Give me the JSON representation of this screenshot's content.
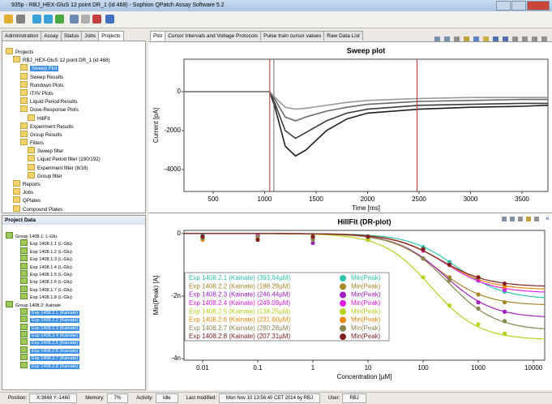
{
  "window": {
    "title": "935p - RBJ_HEX-GluS 12 point DR_1 (id 468) - Sophion QPatch Assay Software 5.2"
  },
  "left_tabs": [
    "Administration",
    "Assay",
    "Status",
    "Jobs",
    "Projects"
  ],
  "left_selected": 4,
  "project_tree": {
    "label": "Projects",
    "children": [
      {
        "label": "RBJ_HEX-GluS 12 point DR_1 (id 468)",
        "children": [
          {
            "label": "Sweep Plot",
            "selected": true
          },
          {
            "label": "Sweep Results"
          },
          {
            "label": "Rundown Plots"
          },
          {
            "label": "IT/IV Plots"
          },
          {
            "label": "Liquid Period Results"
          },
          {
            "label": "Dose-Response Plots",
            "children": [
              {
                "label": "HillFit"
              }
            ]
          },
          {
            "label": "Experiment Results"
          },
          {
            "label": "Group Results"
          },
          {
            "label": "Filters",
            "children": [
              {
                "label": "Sweep filter"
              },
              {
                "label": "Liquid Period filter (190/192)"
              },
              {
                "label": "Experiment filter (8/16)"
              },
              {
                "label": "Group filter"
              }
            ]
          }
        ]
      },
      {
        "label": "Reports"
      },
      {
        "label": "Jobs"
      },
      {
        "label": "QPlates"
      },
      {
        "label": "Compound Plates"
      }
    ]
  },
  "project_data": {
    "title": "Project Data",
    "groups": [
      {
        "label": "Group 1408.1: L-Glu",
        "items": [
          "Exp 1408.1.1 (L-Glu)",
          "Exp 1408.1.2 (L-Glu)",
          "Exp 1408.1.3 (L-Glu)",
          "Exp 1408.1.4 (L-Glu)",
          "Exp 1408.1.5 (L-Glu)",
          "Exp 1408.1.6 (L-Glu)",
          "Exp 1408.1.7 (L-Glu)",
          "Exp 1408.1.8 (L-Glu)"
        ]
      },
      {
        "label": "Group 1408.2: Kainate",
        "selected": true,
        "items": [
          "Exp 1408.2.1 (Kainate)",
          "Exp 1408.2.2 (Kainate)",
          "Exp 1408.2.3 (Kainate)",
          "Exp 1408.2.4 (Kainate)",
          "Exp 1408.2.5 (Kainate)",
          "Exp 1408.2.6 (Kainate)",
          "Exp 1408.2.7 (Kainate)",
          "Exp 1408.2.8 (Kainate)"
        ]
      }
    ]
  },
  "right_tabs": [
    "Plot",
    "Cursor Intervals and Voltage Protocols",
    "Pulse train cursor values",
    "Raw Data List"
  ],
  "right_selected": 0,
  "status_bar": [
    {
      "label": "Position:",
      "value": "X:3848 Y:-1460"
    },
    {
      "label": "Memory:",
      "value": "7%"
    },
    {
      "label": "Activity:",
      "value": "Idle"
    },
    {
      "label": "Last modified:",
      "value": "Mon Nov 10 13:56:40 CET 2014 by RBJ"
    },
    {
      "label": "User:",
      "value": "RBJ"
    }
  ],
  "chart_data": [
    {
      "type": "line",
      "title": "Sweep plot",
      "xlabel": "Time [ms]",
      "ylabel": "Current [pA]",
      "x": [
        217,
        1000,
        1050,
        1100,
        1200,
        1300,
        1400,
        1600,
        1800,
        2000,
        2500,
        3000,
        3500,
        3752
      ],
      "xlim": [
        217,
        3752
      ],
      "ylim": [
        -5125,
        1667
      ],
      "xticks": [
        500,
        1000,
        1500,
        2000,
        2500,
        3000,
        3500
      ],
      "yticks": [
        -4000,
        -2000,
        0
      ],
      "series": [
        {
          "color": "#1e1e1e",
          "values": [
            0,
            0,
            0,
            -800,
            -2800,
            -3300,
            -3000,
            -2000,
            -1400,
            -1100,
            -900,
            -800,
            -750,
            -700
          ]
        },
        {
          "color": "#3c3c3c",
          "values": [
            0,
            0,
            0,
            -600,
            -2000,
            -2400,
            -2100,
            -1500,
            -1100,
            -900,
            -700,
            -650,
            -600,
            -600
          ]
        },
        {
          "color": "#6a6a6a",
          "values": [
            0,
            0,
            0,
            -400,
            -1300,
            -1500,
            -1300,
            -1000,
            -800,
            -650,
            -500,
            -450,
            -400,
            -400
          ]
        },
        {
          "color": "#9a9a9a",
          "values": [
            0,
            0,
            0,
            -300,
            -800,
            -900,
            -850,
            -700,
            -550,
            -450,
            -350,
            -300,
            -300,
            -300
          ]
        }
      ],
      "cursors": [
        {
          "value": 1050,
          "color": "#c03030"
        },
        {
          "value": 1090,
          "color": "#707070"
        },
        {
          "value": 2480,
          "color": "#c03030"
        }
      ]
    },
    {
      "type": "scatter",
      "title": "HillFit (DR-plot)",
      "xlabel": "Concentration [µM]",
      "ylabel": "Min(Peak) [A]",
      "xscale": "log",
      "x": [
        0.01,
        0.1,
        1,
        10,
        100,
        300,
        1000,
        3000
      ],
      "xlim": [
        0.0046,
        16000
      ],
      "ylim": [
        -4.05e-09,
        1e-10
      ],
      "xticks": [
        0.01,
        0.1,
        1,
        10,
        100,
        1000,
        10000
      ],
      "yticks": [
        {
          "value": -4e-09,
          "label": "-4n"
        },
        {
          "value": -2e-09,
          "label": "-2n"
        },
        0
      ],
      "series": [
        {
          "name": "Exp 1408.2.1 (Kainate) (393.64µM)",
          "measure": "Min(Peak)",
          "color": "#2ec4ac",
          "ec50": 393.64,
          "bottom": -2.1e-09,
          "hill": 1,
          "values": [
            -5e-11,
            -1e-10,
            -5e-11,
            -1e-10,
            -4.3e-10,
            -9.1e-10,
            -1.51e-09,
            -1.86e-09
          ]
        },
        {
          "name": "Exp 1408.2.2 (Kainate) (188.29µM)",
          "measure": "Min(Peak)",
          "color": "#a8862a",
          "ec50": 188.29,
          "bottom": -2.3e-09,
          "hill": 1,
          "values": [
            -2e-10,
            -1e-10,
            -1.5e-10,
            -1.5e-10,
            -8e-10,
            -1.4e-09,
            -1.95e-09,
            -2.2e-09
          ]
        },
        {
          "name": "Exp 1408.2.3 (Kainate) (246.44µM)",
          "measure": "Min(Peak)",
          "color": "#a020c0",
          "ec50": 246.44,
          "bottom": -2.7e-09,
          "hill": 1,
          "values": [
            -1e-10,
            -1e-10,
            -3e-10,
            -2e-10,
            -8e-10,
            -1.5e-09,
            -2.2e-09,
            -2.5e-09
          ]
        },
        {
          "name": "Exp 1408.2.4 (Kainate) (249.09µM)",
          "measure": "Min(Peak)",
          "color": "#e020e0",
          "ec50": 249.09,
          "bottom": -1.9e-09,
          "hill": 1,
          "values": [
            -1e-10,
            -5e-11,
            -1e-10,
            -1e-10,
            -5.5e-10,
            -1e-09,
            -1.5e-09,
            -1.8e-09
          ]
        },
        {
          "name": "Exp 1408.2.5 (Kainate) (138.25µM)",
          "measure": "Min(Peak)",
          "color": "#b8d020",
          "ec50": 138.25,
          "bottom": -3.4e-09,
          "hill": 1,
          "values": [
            -1e-10,
            -2e-10,
            -1e-10,
            -2e-10,
            -1.4e-09,
            -2.3e-09,
            -2.9e-09,
            -3.2e-09
          ]
        },
        {
          "name": "Exp 1408.2.6 (Kainate) (231.60µM)",
          "measure": "Min(Peak)",
          "color": "#e88a10",
          "ec50": 231.6,
          "bottom": -1.8e-09,
          "hill": 1,
          "values": [
            -2e-10,
            -1e-10,
            -1e-10,
            -1e-10,
            -5e-10,
            -1e-09,
            -1.4e-09,
            -1.7e-09
          ]
        },
        {
          "name": "Exp 1408.2.7 (Kainate) (280.28µM)",
          "measure": "Min(Peak)",
          "color": "#8a8650",
          "ec50": 280.28,
          "bottom": -3.1e-09,
          "hill": 1,
          "values": [
            -1.5e-10,
            -1e-10,
            -2e-10,
            -1e-10,
            -8e-10,
            -1.5e-09,
            -2.4e-09,
            -2.8e-09
          ]
        },
        {
          "name": "Exp 1408.2.8 (Kainate) (207.31µM)",
          "measure": "Min(Peak)",
          "color": "#802020",
          "ec50": 207.31,
          "bottom": -1.7e-09,
          "hill": 1,
          "values": [
            -1e-10,
            -2e-10,
            -1e-10,
            -1e-10,
            -5e-10,
            -1e-09,
            -1.4e-09,
            -1.6e-09
          ]
        }
      ]
    }
  ]
}
